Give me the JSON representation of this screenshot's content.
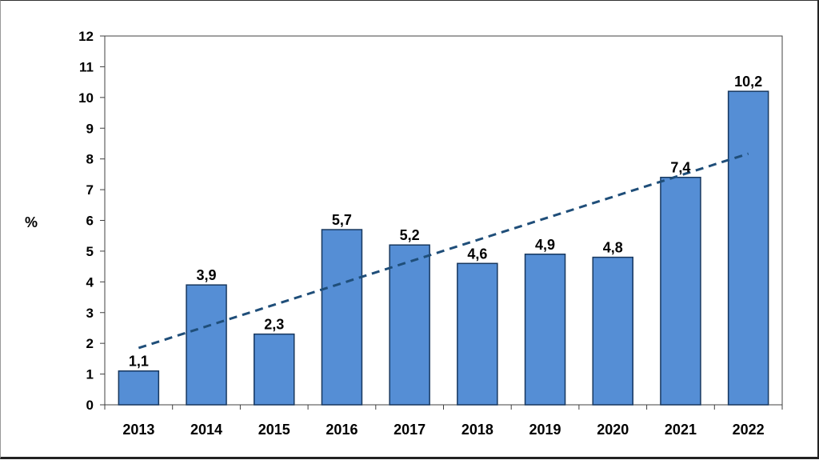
{
  "chart_data": {
    "type": "bar",
    "categories": [
      "2013",
      "2014",
      "2015",
      "2016",
      "2017",
      "2018",
      "2019",
      "2020",
      "2021",
      "2022"
    ],
    "values": [
      1.1,
      3.9,
      2.3,
      5.7,
      5.2,
      4.6,
      4.9,
      4.8,
      7.4,
      10.2
    ],
    "value_labels": [
      "1,1",
      "3,9",
      "2,3",
      "5,7",
      "5,2",
      "4,6",
      "4,9",
      "4,8",
      "7,4",
      "10,2"
    ],
    "ylabel": "%",
    "xlabel": "",
    "title": "",
    "ylim": [
      0,
      12
    ],
    "yticks": [
      0,
      1,
      2,
      3,
      4,
      5,
      6,
      7,
      8,
      9,
      10,
      11,
      12
    ],
    "trendline": {
      "type": "linear",
      "style": "dashed"
    },
    "grid": false,
    "legend": "none",
    "colors": {
      "bar_fill": "#558ED5",
      "bar_stroke": "#17375E",
      "trend": "#1F4E79",
      "axis": "#404040"
    }
  }
}
